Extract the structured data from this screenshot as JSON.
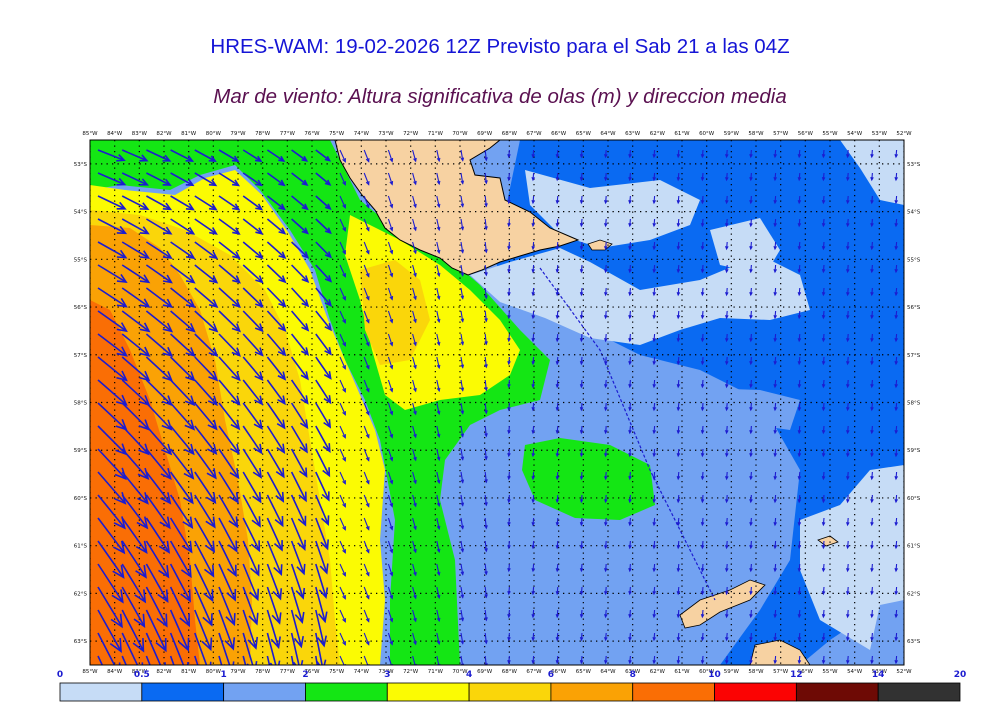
{
  "header": {
    "title": "HRES-WAM: 19-02-2026 12Z Previsto para el Sab 21 a las 04Z",
    "subtitle": "Mar de viento: Altura significativa de olas (m) y direccion media"
  },
  "map": {
    "lon_labels": [
      "85°W",
      "84°W",
      "83°W",
      "82°W",
      "81°W",
      "80°W",
      "79°W",
      "78°W",
      "77°W",
      "76°W",
      "75°W",
      "74°W",
      "73°W",
      "72°W",
      "71°W",
      "70°W",
      "69°W",
      "68°W",
      "67°W",
      "66°W",
      "65°W",
      "64°W",
      "63°W",
      "62°W",
      "61°W",
      "60°W",
      "59°W",
      "58°W",
      "57°W",
      "56°W",
      "55°W",
      "54°W",
      "53°W",
      "52°W"
    ],
    "lat_labels": [
      "53°S",
      "54°S",
      "55°S",
      "56°S",
      "57°S",
      "58°S",
      "59°S",
      "60°S",
      "61°S",
      "62°S",
      "63°S"
    ],
    "lon_range": [
      -85,
      -52
    ],
    "lat_range": [
      -52.5,
      -63.5
    ]
  },
  "colorbar": {
    "labels": [
      "0",
      "0.5",
      "1",
      "2",
      "3",
      "4",
      "6",
      "8",
      "10",
      "12",
      "14",
      "20"
    ],
    "colors": [
      "#c6dcf6",
      "#0a6af2",
      "#72a2f2",
      "#14e614",
      "#fbfb03",
      "#fad60a",
      "#faa205",
      "#fa6e05",
      "#fb0303",
      "#6e0a05",
      "#323232"
    ]
  },
  "colors": {
    "title": "#1515d6",
    "subtitle": "#5a1050",
    "land": "#f7d2a2",
    "arrows": "#1c1cd0"
  }
}
